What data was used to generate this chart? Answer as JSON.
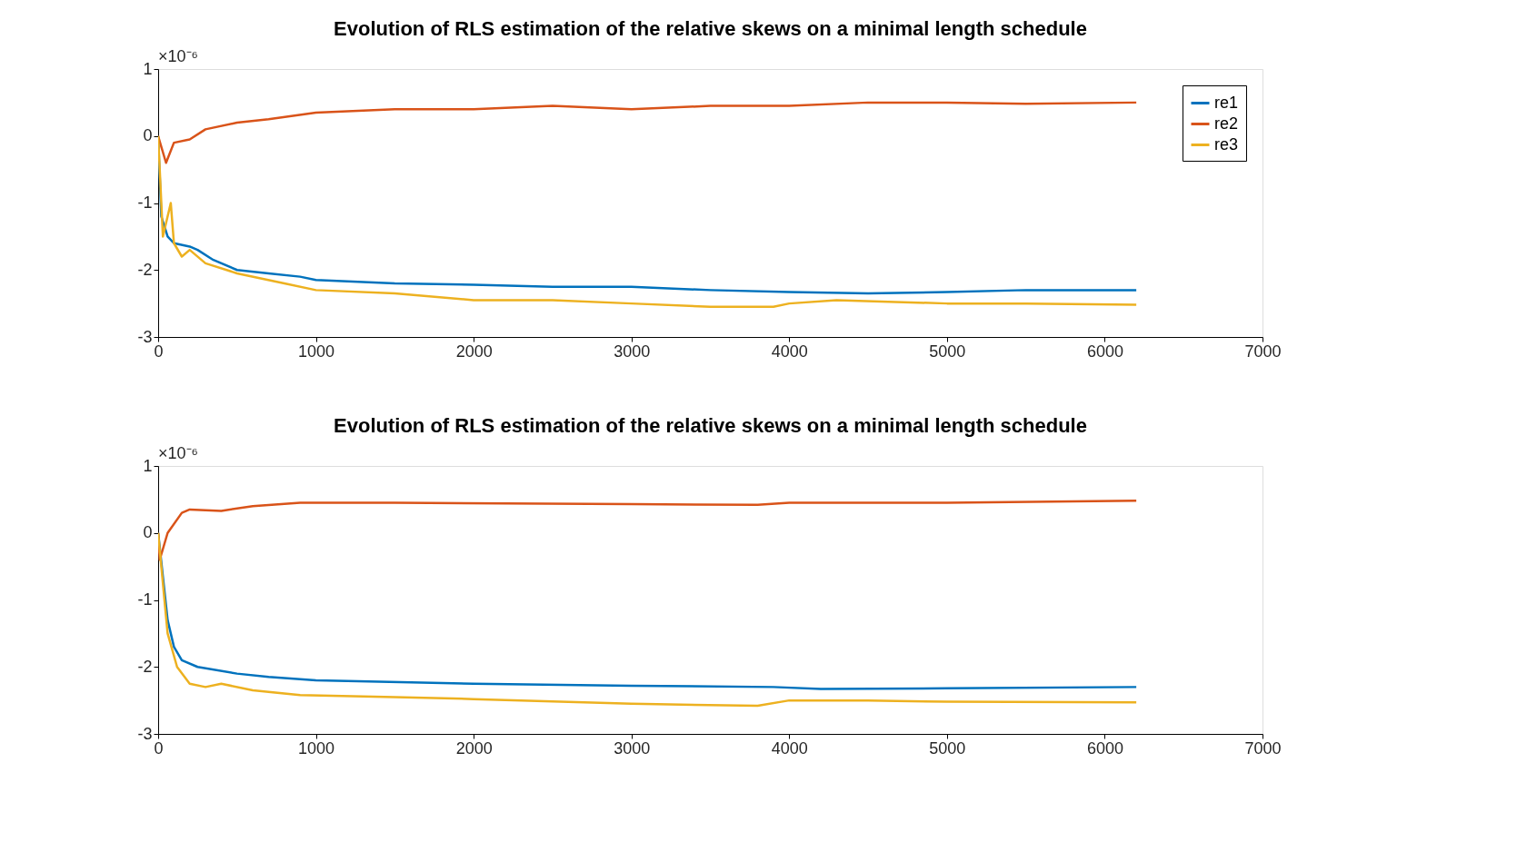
{
  "chart_data": [
    {
      "type": "line",
      "title": "Evolution of RLS estimation of the relative skews on a minimal length schedule",
      "annotations": [
        "×10⁻⁶"
      ],
      "xlim": [
        0,
        7000
      ],
      "xticks": [
        0,
        1000,
        2000,
        3000,
        4000,
        5000,
        6000,
        7000
      ],
      "ylim": [
        -3,
        1
      ],
      "yticks": [
        -3,
        -2,
        -1,
        0,
        1
      ],
      "grid": false,
      "legend": "top right",
      "line_style": "solid",
      "marker": "none",
      "series": [
        {
          "name": "re1",
          "color": "#0072bd",
          "x": [
            0,
            20,
            60,
            100,
            200,
            250,
            350,
            500,
            700,
            900,
            1000,
            1500,
            2000,
            2500,
            3000,
            3500,
            4000,
            4500,
            5000,
            5500,
            6200
          ],
          "values": [
            0,
            -1.2,
            -1.5,
            -1.6,
            -1.65,
            -1.7,
            -1.85,
            -2.0,
            -2.05,
            -2.1,
            -2.15,
            -2.2,
            -2.22,
            -2.25,
            -2.25,
            -2.3,
            -2.33,
            -2.35,
            -2.33,
            -2.3,
            -2.3
          ]
        },
        {
          "name": "re2",
          "color": "#d95319",
          "x": [
            0,
            50,
            100,
            200,
            300,
            500,
            700,
            1000,
            1500,
            2000,
            2500,
            3000,
            3500,
            4000,
            4500,
            5000,
            5500,
            6200
          ],
          "values": [
            0,
            -0.4,
            -0.1,
            -0.05,
            0.1,
            0.2,
            0.25,
            0.35,
            0.4,
            0.4,
            0.45,
            0.4,
            0.45,
            0.45,
            0.5,
            0.5,
            0.48,
            0.5
          ]
        },
        {
          "name": "re3",
          "color": "#edb120",
          "x": [
            0,
            30,
            60,
            80,
            100,
            150,
            200,
            300,
            500,
            800,
            1000,
            1500,
            2000,
            2500,
            3000,
            3500,
            3900,
            4000,
            4300,
            5000,
            5500,
            6200
          ],
          "values": [
            0,
            -1.5,
            -1.2,
            -1.0,
            -1.6,
            -1.8,
            -1.7,
            -1.9,
            -2.05,
            -2.2,
            -2.3,
            -2.35,
            -2.45,
            -2.45,
            -2.5,
            -2.55,
            -2.55,
            -2.5,
            -2.45,
            -2.5,
            -2.5,
            -2.52
          ]
        }
      ]
    },
    {
      "type": "line",
      "title": "Evolution of RLS estimation of the relative skews on a minimal length schedule",
      "annotations": [
        "×10⁻⁶"
      ],
      "xlim": [
        0,
        7000
      ],
      "xticks": [
        0,
        1000,
        2000,
        3000,
        4000,
        5000,
        6000,
        7000
      ],
      "ylim": [
        -3,
        1
      ],
      "yticks": [
        -3,
        -2,
        -1,
        0,
        1
      ],
      "grid": false,
      "legend": "top right",
      "line_style": "solid",
      "marker": "none",
      "series": [
        {
          "name": "re1",
          "color": "#0072bd",
          "x": [
            0,
            60,
            100,
            150,
            250,
            500,
            700,
            1000,
            2000,
            3000,
            3900,
            4200,
            5000,
            6200
          ],
          "values": [
            0,
            -1.3,
            -1.7,
            -1.9,
            -2.0,
            -2.1,
            -2.15,
            -2.2,
            -2.25,
            -2.28,
            -2.3,
            -2.33,
            -2.32,
            -2.3
          ]
        },
        {
          "name": "re2",
          "color": "#d95319",
          "x": [
            0,
            10,
            60,
            150,
            200,
            400,
            600,
            900,
            1500,
            3000,
            3800,
            4000,
            5000,
            6200
          ],
          "values": [
            0,
            -0.4,
            0,
            0.3,
            0.35,
            0.33,
            0.4,
            0.45,
            0.45,
            0.43,
            0.42,
            0.45,
            0.45,
            0.48
          ]
        },
        {
          "name": "re3",
          "color": "#edb120",
          "x": [
            0,
            60,
            120,
            200,
            300,
            400,
            600,
            900,
            1500,
            2000,
            3000,
            3800,
            4000,
            4500,
            5000,
            6200
          ],
          "values": [
            0,
            -1.5,
            -2.0,
            -2.25,
            -2.3,
            -2.25,
            -2.35,
            -2.42,
            -2.45,
            -2.48,
            -2.55,
            -2.58,
            -2.5,
            -2.5,
            -2.52,
            -2.53
          ]
        }
      ]
    }
  ]
}
